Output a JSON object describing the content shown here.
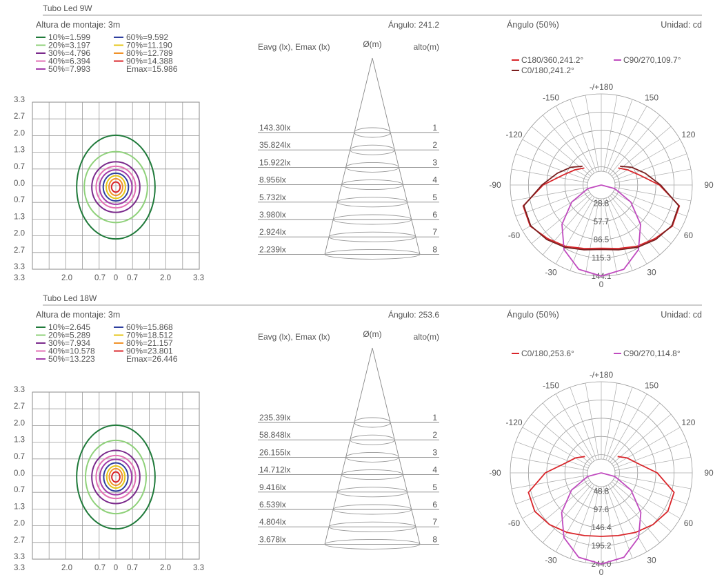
{
  "sections": [
    {
      "title": "Tubo Led 9W",
      "mounting": "Altura de montaje: 3m",
      "legend": [
        {
          "label": "10%=1.599",
          "color": "#1f7a3a"
        },
        {
          "label": "60%=9.592",
          "color": "#2e3f9e"
        },
        {
          "label": "20%=3.197",
          "color": "#8fd17a"
        },
        {
          "label": "70%=11.190",
          "color": "#e6c619"
        },
        {
          "label": "30%=4.796",
          "color": "#7b2a8c"
        },
        {
          "label": "80%=12.789",
          "color": "#f0922a"
        },
        {
          "label": "40%=6.394",
          "color": "#e26fb4"
        },
        {
          "label": "90%=14.388",
          "color": "#d9252a"
        },
        {
          "label": "50%=7.993",
          "color": "#a13aa8"
        },
        {
          "label": "Emax=15.986",
          "color": ""
        }
      ],
      "grid_y_ticks": [
        "3.3",
        "2.7",
        "2.0",
        "1.3",
        "0.7",
        "0.0",
        "0.7",
        "1.3",
        "2.0",
        "2.7",
        "3.3"
      ],
      "grid_x_ticks": [
        "2.0",
        "0.7",
        "0",
        "0.7",
        "2.0",
        "3.3"
      ],
      "cone": {
        "angle_label": "Ángulo: 241.2",
        "eavg_label": "Eavg (lx), Emax (lx)",
        "dia_label": "Ø(m)",
        "alto_label": "alto(m)",
        "rows": [
          {
            "lux": "143.30lx",
            "h": "1"
          },
          {
            "lux": "35.824lx",
            "h": "2"
          },
          {
            "lux": "15.922lx",
            "h": "3"
          },
          {
            "lux": "8.956lx",
            "h": "4"
          },
          {
            "lux": "5.732lx",
            "h": "5"
          },
          {
            "lux": "3.980lx",
            "h": "6"
          },
          {
            "lux": "2.924lx",
            "h": "7"
          },
          {
            "lux": "2.239lx",
            "h": "8"
          }
        ]
      },
      "polar": {
        "angle50": "Ángulo (50%)",
        "unit": "Unidad: cd",
        "legend": [
          {
            "label": "C180/360,241.2°",
            "color": "#d9252a"
          },
          {
            "label": "C90/270,109.7°",
            "color": "#c04bbf"
          },
          {
            "label": "C0/180,241.2°",
            "color": "#7a1f1f"
          }
        ],
        "radial_labels": [
          "28.8",
          "57.7",
          "86.5",
          "115.3",
          "144.1"
        ],
        "angle_labels": [
          "-/+180",
          "150",
          "120",
          "90",
          "60",
          "30",
          "0",
          "-30",
          "-60",
          "-90",
          "-120",
          "-150"
        ]
      }
    },
    {
      "title": "Tubo Led 18W",
      "mounting": "Altura de montaje: 3m",
      "legend": [
        {
          "label": "10%=2.645",
          "color": "#1f7a3a"
        },
        {
          "label": "60%=15.868",
          "color": "#2e3f9e"
        },
        {
          "label": "20%=5.289",
          "color": "#8fd17a"
        },
        {
          "label": "70%=18.512",
          "color": "#e6c619"
        },
        {
          "label": "30%=7.934",
          "color": "#7b2a8c"
        },
        {
          "label": "80%=21.157",
          "color": "#f0922a"
        },
        {
          "label": "40%=10.578",
          "color": "#e26fb4"
        },
        {
          "label": "90%=23.801",
          "color": "#d9252a"
        },
        {
          "label": "50%=13.223",
          "color": "#a13aa8"
        },
        {
          "label": "Emax=26.446",
          "color": ""
        }
      ],
      "grid_y_ticks": [
        "3.3",
        "2.7",
        "2.0",
        "1.3",
        "0.7",
        "0.0",
        "0.7",
        "1.3",
        "2.0",
        "2.7",
        "3.3"
      ],
      "grid_x_ticks": [
        "2.0",
        "0.7",
        "0",
        "0.7",
        "2.0",
        "3.3"
      ],
      "cone": {
        "angle_label": "Ángulo: 253.6",
        "eavg_label": "Eavg (lx), Emax (lx)",
        "dia_label": "Ø(m)",
        "alto_label": "alto(m)",
        "rows": [
          {
            "lux": "235.39lx",
            "h": "1"
          },
          {
            "lux": "58.848lx",
            "h": "2"
          },
          {
            "lux": "26.155lx",
            "h": "3"
          },
          {
            "lux": "14.712lx",
            "h": "4"
          },
          {
            "lux": "9.416lx",
            "h": "5"
          },
          {
            "lux": "6.539lx",
            "h": "6"
          },
          {
            "lux": "4.804lx",
            "h": "7"
          },
          {
            "lux": "3.678lx",
            "h": "8"
          }
        ]
      },
      "polar": {
        "angle50": "Ángulo (50%)",
        "unit": "Unidad: cd",
        "legend": [
          {
            "label": "C0/180,253.6°",
            "color": "#d9252a"
          },
          {
            "label": "C90/270,114.8°",
            "color": "#c04bbf"
          }
        ],
        "radial_labels": [
          "48.8",
          "97.6",
          "146.4",
          "195.2",
          "244.0"
        ],
        "angle_labels": [
          "-/+180",
          "150",
          "120",
          "90",
          "60",
          "30",
          "0",
          "-30",
          "-60",
          "-90",
          "-120",
          "-150"
        ]
      }
    }
  ],
  "chart_data": [
    {
      "type": "contour",
      "title": "Tubo Led 9W",
      "subtitle": "Altura de montaje: 3m",
      "levels": [
        {
          "pct": 10,
          "value": 1.599
        },
        {
          "pct": 20,
          "value": 3.197
        },
        {
          "pct": 30,
          "value": 4.796
        },
        {
          "pct": 40,
          "value": 6.394
        },
        {
          "pct": 50,
          "value": 7.993
        },
        {
          "pct": 60,
          "value": 9.592
        },
        {
          "pct": 70,
          "value": 11.19
        },
        {
          "pct": 80,
          "value": 12.789
        },
        {
          "pct": 90,
          "value": 14.388
        }
      ],
      "emax": 15.986,
      "contour_radii_m": [
        {
          "pct": 10,
          "rx": 1.55,
          "ry": 2.05
        },
        {
          "pct": 20,
          "rx": 1.25,
          "ry": 1.4
        },
        {
          "pct": 30,
          "rx": 0.95,
          "ry": 1.0
        },
        {
          "pct": 40,
          "rx": 0.78,
          "ry": 0.82
        },
        {
          "pct": 50,
          "rx": 0.64,
          "ry": 0.68
        },
        {
          "pct": 60,
          "rx": 0.5,
          "ry": 0.55
        },
        {
          "pct": 70,
          "rx": 0.38,
          "ry": 0.45
        },
        {
          "pct": 80,
          "rx": 0.27,
          "ry": 0.33
        },
        {
          "pct": 90,
          "rx": 0.17,
          "ry": 0.2
        }
      ],
      "xlim": [
        -3.3,
        3.3
      ],
      "ylim": [
        -3.3,
        3.3
      ]
    },
    {
      "type": "table",
      "title": "Tubo Led 9W",
      "angle": 241.2,
      "heights_m": [
        1,
        2,
        3,
        4,
        5,
        6,
        7,
        8
      ],
      "eavg_lx": [
        143.3,
        35.824,
        15.922,
        8.956,
        5.732,
        3.98,
        2.924,
        2.239
      ]
    },
    {
      "type": "polar",
      "title": "Tubo Led 9W",
      "unit": "cd",
      "rmax": 144.1,
      "rticks": [
        28.8,
        57.7,
        86.5,
        115.3,
        144.1
      ],
      "series": [
        {
          "name": "C180/360,241.2°",
          "angles_deg": [
            0,
            15,
            30,
            45,
            60,
            75,
            90,
            105,
            120,
            135
          ],
          "values": [
            100,
            104,
            112,
            120,
            130,
            128,
            92,
            62,
            48,
            38
          ]
        },
        {
          "name": "C90/270,109.7°",
          "angles_deg": [
            0,
            15,
            30,
            45,
            60,
            75,
            90
          ],
          "values": [
            144,
            138,
            118,
            88,
            54,
            22,
            0
          ]
        },
        {
          "name": "C0/180,241.2°",
          "angles_deg": [
            0,
            15,
            30,
            45,
            60,
            75,
            90,
            105,
            120,
            135
          ],
          "values": [
            102,
            106,
            114,
            122,
            129,
            127,
            94,
            72,
            56,
            42
          ]
        }
      ]
    },
    {
      "type": "contour",
      "title": "Tubo Led 18W",
      "subtitle": "Altura de montaje: 3m",
      "levels": [
        {
          "pct": 10,
          "value": 2.645
        },
        {
          "pct": 20,
          "value": 5.289
        },
        {
          "pct": 30,
          "value": 7.934
        },
        {
          "pct": 40,
          "value": 10.578
        },
        {
          "pct": 50,
          "value": 13.223
        },
        {
          "pct": 60,
          "value": 15.868
        },
        {
          "pct": 70,
          "value": 18.512
        },
        {
          "pct": 80,
          "value": 21.157
        },
        {
          "pct": 90,
          "value": 23.801
        }
      ],
      "emax": 26.446,
      "contour_radii_m": [
        {
          "pct": 10,
          "rx": 1.55,
          "ry": 2.05
        },
        {
          "pct": 20,
          "rx": 1.2,
          "ry": 1.45
        },
        {
          "pct": 30,
          "rx": 0.95,
          "ry": 1.05
        },
        {
          "pct": 40,
          "rx": 0.78,
          "ry": 0.85
        },
        {
          "pct": 50,
          "rx": 0.63,
          "ry": 0.7
        },
        {
          "pct": 60,
          "rx": 0.48,
          "ry": 0.56
        },
        {
          "pct": 70,
          "rx": 0.36,
          "ry": 0.44
        },
        {
          "pct": 80,
          "rx": 0.26,
          "ry": 0.33
        },
        {
          "pct": 90,
          "rx": 0.16,
          "ry": 0.2
        }
      ],
      "xlim": [
        -3.3,
        3.3
      ],
      "ylim": [
        -3.3,
        3.3
      ]
    },
    {
      "type": "table",
      "title": "Tubo Led 18W",
      "angle": 253.6,
      "heights_m": [
        1,
        2,
        3,
        4,
        5,
        6,
        7,
        8
      ],
      "eavg_lx": [
        235.39,
        58.848,
        26.155,
        14.712,
        9.416,
        6.539,
        4.804,
        3.678
      ]
    },
    {
      "type": "polar",
      "title": "Tubo Led 18W",
      "unit": "cd",
      "rmax": 244.0,
      "rticks": [
        48.8,
        97.6,
        146.4,
        195.2,
        244.0
      ],
      "series": [
        {
          "name": "C0/180,253.6°",
          "angles_deg": [
            0,
            15,
            30,
            45,
            60,
            75,
            90,
            105,
            120,
            135
          ],
          "values": [
            170,
            174,
            184,
            196,
            206,
            202,
            150,
            100,
            80,
            62
          ]
        },
        {
          "name": "C90/270,114.8°",
          "angles_deg": [
            0,
            15,
            30,
            45,
            60,
            75,
            90
          ],
          "values": [
            244,
            234,
            200,
            150,
            92,
            38,
            0
          ]
        }
      ]
    }
  ]
}
